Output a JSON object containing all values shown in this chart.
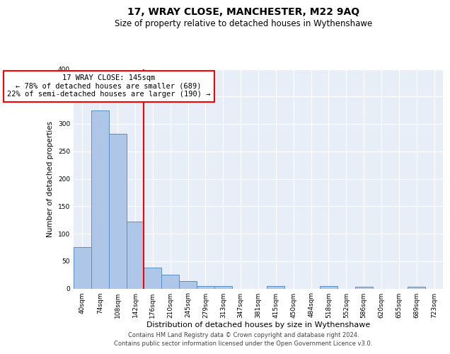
{
  "title": "17, WRAY CLOSE, MANCHESTER, M22 9AQ",
  "subtitle": "Size of property relative to detached houses in Wythenshawe",
  "xlabel": "Distribution of detached houses by size in Wythenshawe",
  "ylabel": "Number of detached properties",
  "categories": [
    "40sqm",
    "74sqm",
    "108sqm",
    "142sqm",
    "176sqm",
    "210sqm",
    "245sqm",
    "279sqm",
    "313sqm",
    "347sqm",
    "381sqm",
    "415sqm",
    "450sqm",
    "484sqm",
    "518sqm",
    "552sqm",
    "586sqm",
    "620sqm",
    "655sqm",
    "689sqm",
    "723sqm"
  ],
  "values": [
    75,
    325,
    282,
    122,
    38,
    25,
    13,
    4,
    4,
    0,
    0,
    5,
    0,
    0,
    4,
    0,
    3,
    0,
    0,
    3,
    0
  ],
  "bar_color": "#aec6e8",
  "bar_edge_color": "#5a8fc2",
  "red_line_x": 3.5,
  "annotation_text": "17 WRAY CLOSE: 145sqm\n← 78% of detached houses are smaller (689)\n22% of semi-detached houses are larger (190) →",
  "annotation_box_color": "white",
  "annotation_box_edge_color": "red",
  "red_line_color": "red",
  "ylim": [
    0,
    400
  ],
  "yticks": [
    0,
    50,
    100,
    150,
    200,
    250,
    300,
    350,
    400
  ],
  "footer_line1": "Contains HM Land Registry data © Crown copyright and database right 2024.",
  "footer_line2": "Contains public sector information licensed under the Open Government Licence v3.0.",
  "bg_color": "#e8eef8",
  "grid_color": "white",
  "title_fontsize": 10,
  "subtitle_fontsize": 8.5,
  "xlabel_fontsize": 8,
  "ylabel_fontsize": 7.5,
  "tick_fontsize": 6.5,
  "annot_fontsize": 7.5,
  "footer_fontsize": 6
}
